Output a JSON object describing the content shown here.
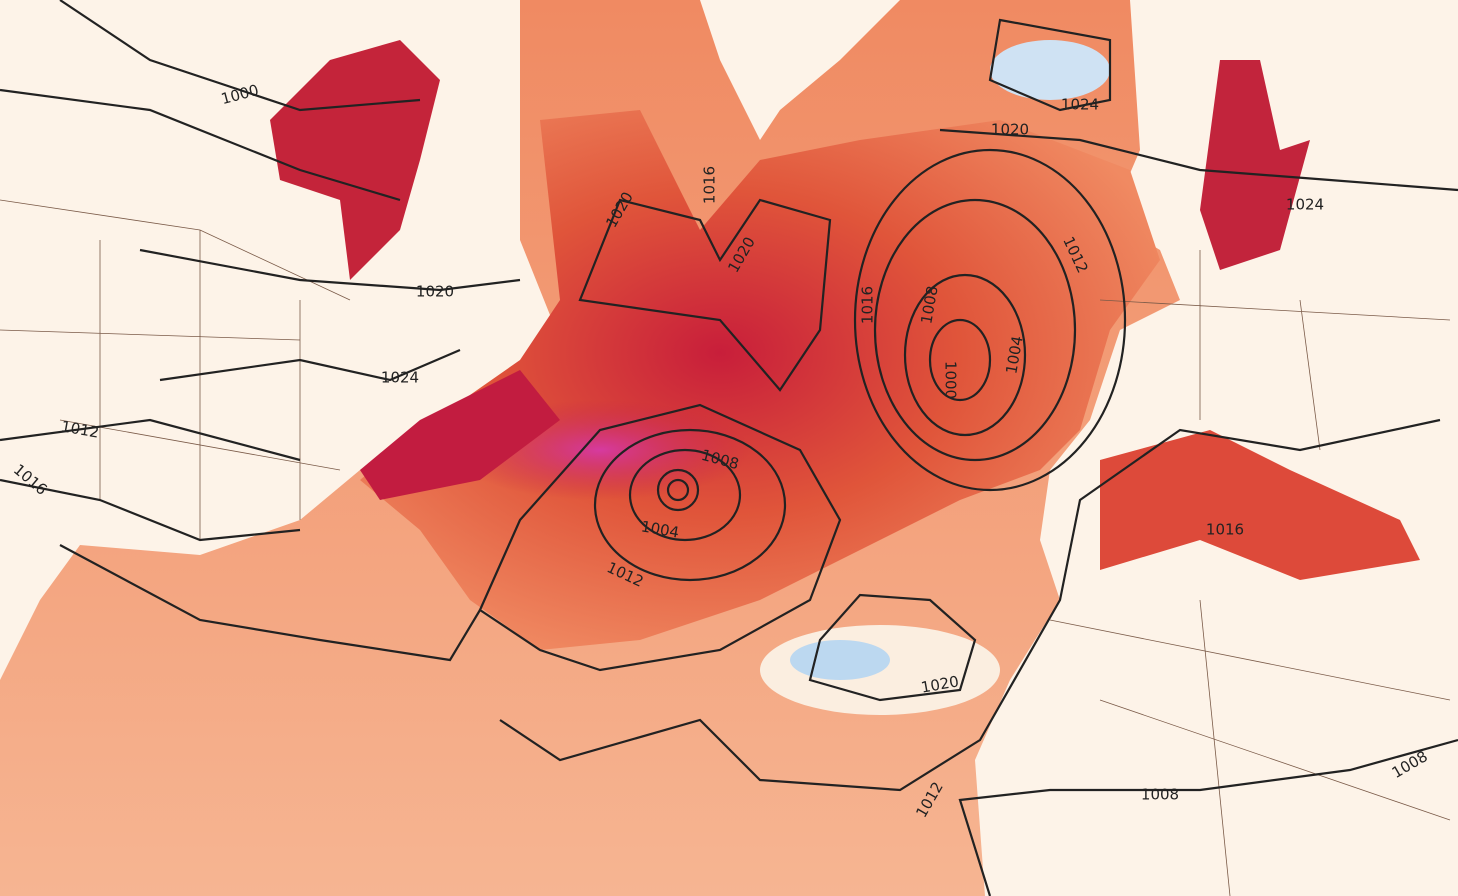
{
  "isobar_labels": [
    "1000",
    "1020",
    "1024",
    "1012",
    "1016",
    "1020",
    "1016",
    "1020",
    "1024",
    "1020",
    "1016",
    "1008",
    "1000",
    "1004",
    "1012",
    "1024",
    "1008",
    "1004",
    "1012",
    "1016",
    "1020",
    "1012",
    "1008",
    "1008"
  ]
}
